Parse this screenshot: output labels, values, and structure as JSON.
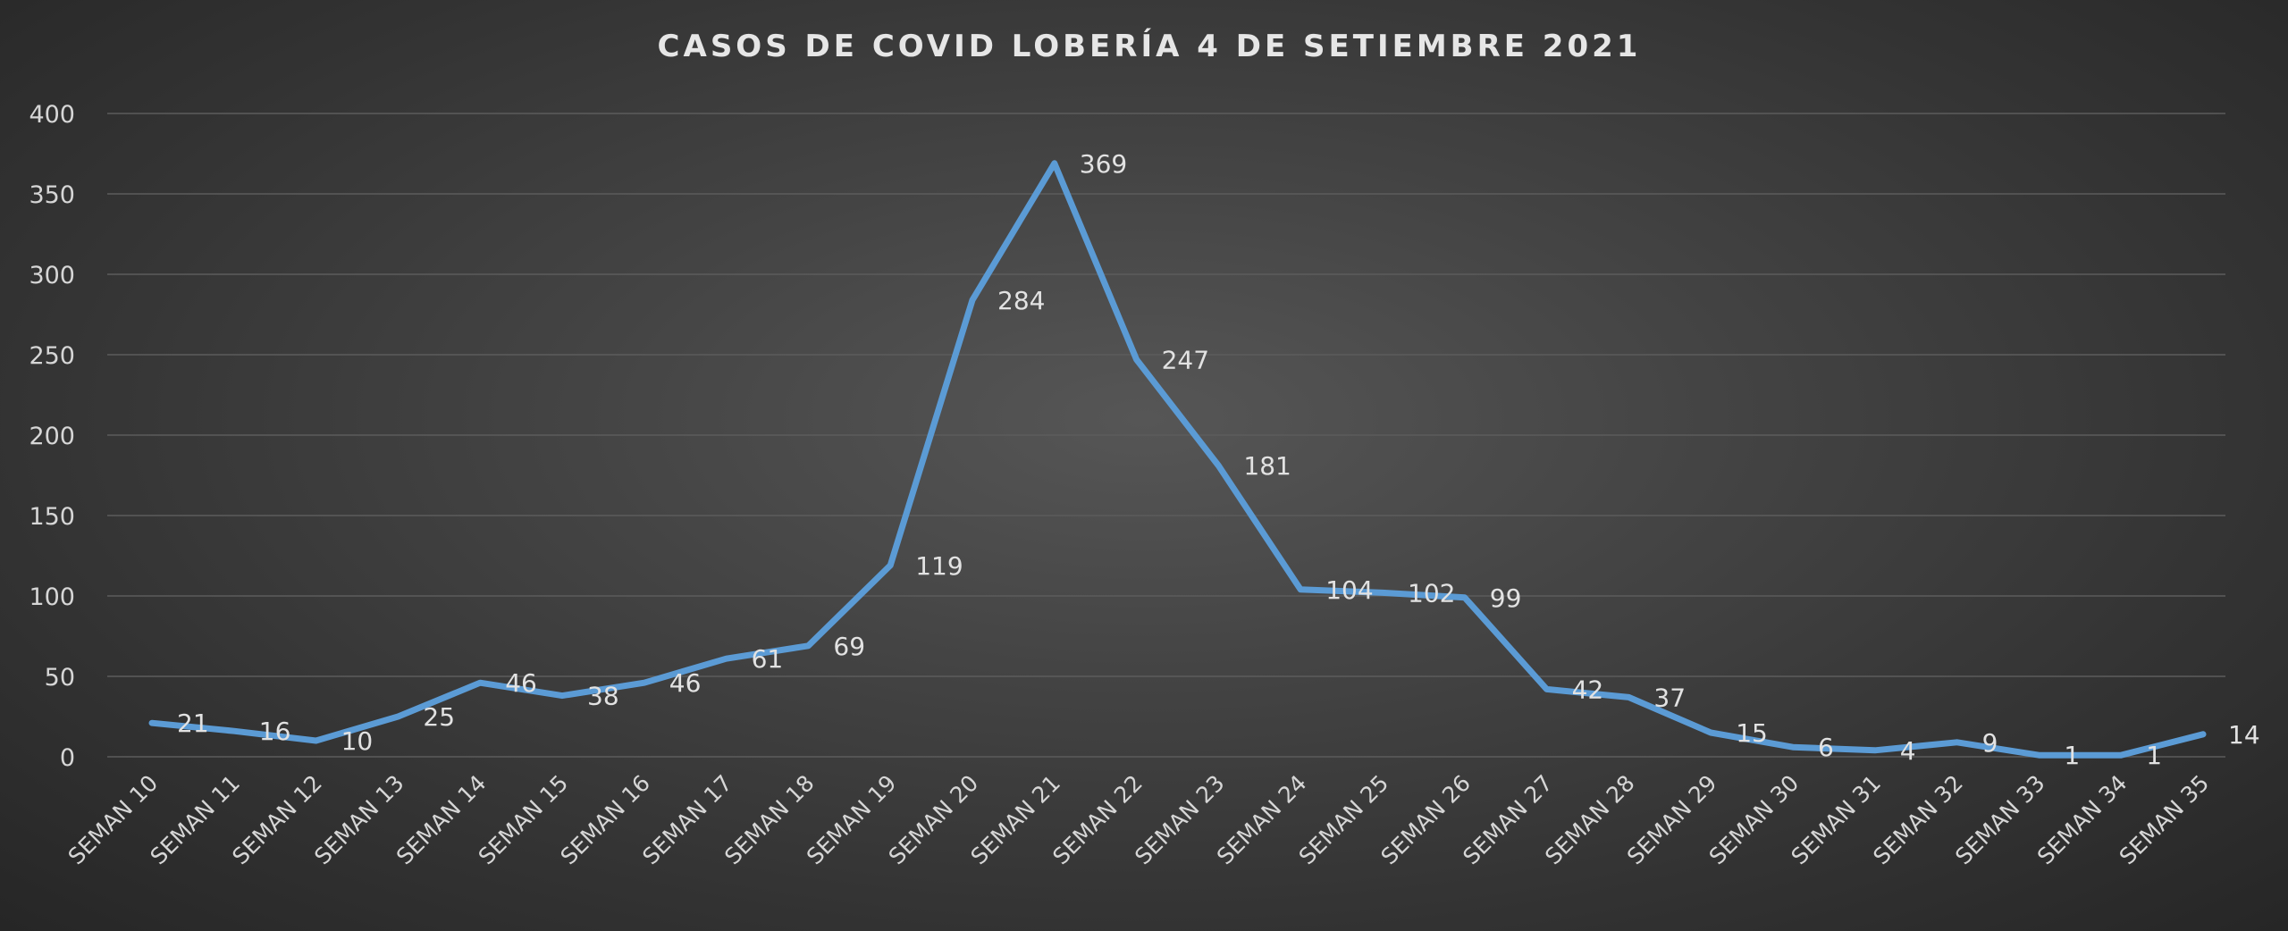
{
  "chart_data": {
    "type": "line",
    "title": "CASOS DE COVID LOBERÍA 4 DE SETIEMBRE 2021",
    "xlabel": "",
    "ylabel": "",
    "ylim": [
      0,
      400
    ],
    "yticks": [
      0,
      50,
      100,
      150,
      200,
      250,
      300,
      350,
      400
    ],
    "grid": true,
    "legend": "none",
    "categories": [
      "SEMAN 10",
      "SEMAN 11",
      "SEMAN 12",
      "SEMAN 13",
      "SEMAN 14",
      "SEMAN 15",
      "SEMAN 16",
      "SEMAN 17",
      "SEMAN 18",
      "SEMAN 19",
      "SEMAN 20",
      "SEMAN 21",
      "SEMAN 22",
      "SEMAN 23",
      "SEMAN 24",
      "SEMAN 25",
      "SEMAN 26",
      "SEMAN 27",
      "SEMAN 28",
      "SEMAN 29",
      "SEMAN 30",
      "SEMAN 31",
      "SEMAN 32",
      "SEMAN 33",
      "SEMAN 34",
      "SEMAN 35"
    ],
    "series": [
      {
        "color": "#5b9bd5",
        "values": [
          21,
          16,
          10,
          25,
          46,
          38,
          46,
          61,
          69,
          119,
          284,
          369,
          247,
          181,
          104,
          102,
          99,
          42,
          37,
          15,
          6,
          4,
          9,
          1,
          1,
          14
        ]
      }
    ]
  }
}
